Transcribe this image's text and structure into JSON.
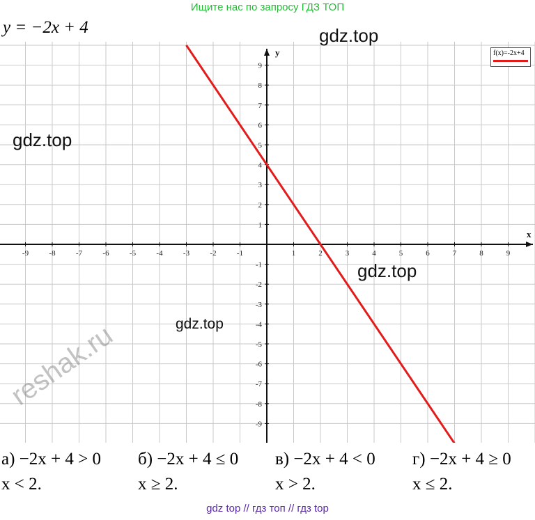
{
  "header": {
    "top_note": "Ищите нас по запросу ГДЗ ТОП",
    "equation": "y = −2x + 4"
  },
  "watermarks": {
    "w1": "gdz.top",
    "w2": "gdz.top",
    "w3": "gdz.top",
    "w4": "gdz.top",
    "reshak": "reshak.ru"
  },
  "chart_data": {
    "type": "line",
    "xlabel": "x",
    "ylabel": "y",
    "xlim": [
      -10,
      10
    ],
    "ylim": [
      -10,
      10
    ],
    "x_ticks": [
      "-9",
      "-8",
      "-7",
      "-6",
      "-5",
      "-4",
      "-3",
      "-2",
      "-1",
      "1",
      "2",
      "3",
      "4",
      "5",
      "6",
      "7",
      "8",
      "9"
    ],
    "y_ticks": [
      "9",
      "8",
      "7",
      "6",
      "5",
      "4",
      "3",
      "2",
      "1",
      "-1",
      "-2",
      "-3",
      "-4",
      "-5",
      "-6",
      "-7",
      "-8",
      "-9"
    ],
    "grid": true,
    "legend": "top-right",
    "series": [
      {
        "name": "f(x)=-2x+4",
        "color": "#e21b1b",
        "x": [
          -3,
          7
        ],
        "y": [
          10,
          -10
        ]
      }
    ]
  },
  "answers": [
    {
      "label": "а)",
      "inequality": "−2x + 4 > 0",
      "result": "x < 2."
    },
    {
      "label": "б)",
      "inequality": "−2x + 4 ≤ 0",
      "result": "x ≥ 2."
    },
    {
      "label": "в)",
      "inequality": "−2x + 4 < 0",
      "result": "x > 2."
    },
    {
      "label": "г)",
      "inequality": "−2x + 4 ≥ 0",
      "result": "x ≤ 2."
    }
  ],
  "footer": {
    "note": "gdz top  //  гдз топ  //  гдз top"
  }
}
